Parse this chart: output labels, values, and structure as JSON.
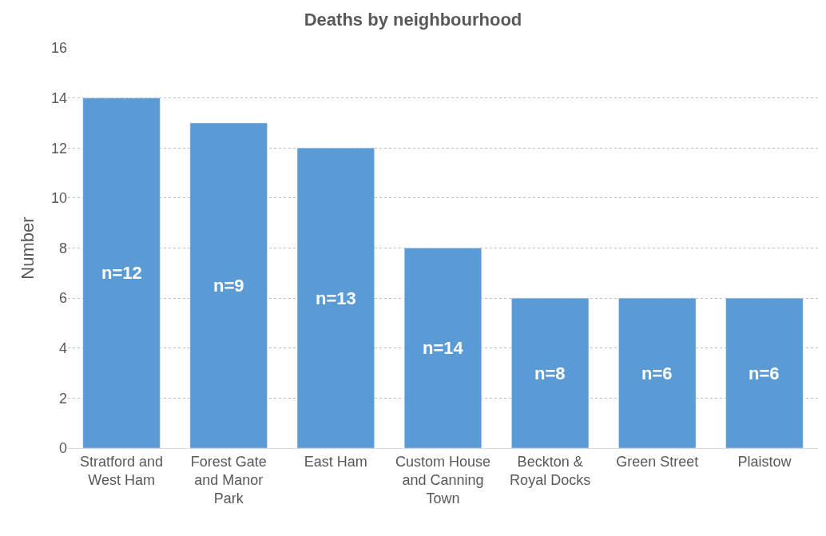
{
  "chart_data": {
    "type": "bar",
    "title": "Deaths by neighbourhood",
    "ylabel": "Number",
    "categories": [
      "Stratford and West Ham",
      "Forest Gate and Manor Park",
      "East Ham",
      "Custom House and Canning Town",
      "Beckton & Royal Docks",
      "Green Street",
      "Plaistow"
    ],
    "values": [
      14,
      13,
      12,
      8,
      6,
      6,
      6
    ],
    "annotations": [
      "n=12",
      "n=9",
      "n=13",
      "n=14",
      "n=8",
      "n=6",
      "n=6"
    ],
    "color": "#5b9bd5",
    "ylim": [
      0,
      16
    ],
    "yticks": [
      0,
      2,
      4,
      6,
      8,
      10,
      12,
      14,
      16
    ],
    "grid": "y"
  }
}
